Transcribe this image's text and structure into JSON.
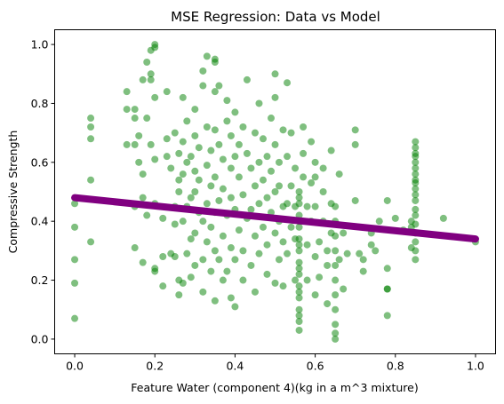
{
  "chart_data": {
    "type": "scatter",
    "title": "MSE Regression: Data vs Model",
    "xlabel": "Feature Water  (component 4)(kg in a m^3 mixture)",
    "ylabel": "Compressive Strength",
    "xlim": [
      -0.05,
      1.05
    ],
    "ylim": [
      -0.05,
      1.05
    ],
    "xticks": [
      "0.0",
      "0.2",
      "0.4",
      "0.6",
      "0.8",
      "1.0"
    ],
    "yticks": [
      "0.0",
      "0.2",
      "0.4",
      "0.6",
      "0.8",
      "1.0"
    ],
    "grid": false,
    "colors": {
      "points": "#008000",
      "line": "#800080"
    },
    "points": [
      [
        0.0,
        0.07
      ],
      [
        0.0,
        0.19
      ],
      [
        0.0,
        0.27
      ],
      [
        0.0,
        0.38
      ],
      [
        0.0,
        0.46
      ],
      [
        0.04,
        0.33
      ],
      [
        0.04,
        0.54
      ],
      [
        0.04,
        0.68
      ],
      [
        0.04,
        0.72
      ],
      [
        0.04,
        0.75
      ],
      [
        0.13,
        0.66
      ],
      [
        0.13,
        0.78
      ],
      [
        0.13,
        0.84
      ],
      [
        0.15,
        0.31
      ],
      [
        0.15,
        0.45
      ],
      [
        0.15,
        0.66
      ],
      [
        0.15,
        0.75
      ],
      [
        0.15,
        0.78
      ],
      [
        0.16,
        0.69
      ],
      [
        0.16,
        0.6
      ],
      [
        0.17,
        0.48
      ],
      [
        0.17,
        0.56
      ],
      [
        0.17,
        0.26
      ],
      [
        0.17,
        0.88
      ],
      [
        0.18,
        0.42
      ],
      [
        0.18,
        0.75
      ],
      [
        0.18,
        0.94
      ],
      [
        0.19,
        0.98
      ],
      [
        0.19,
        0.9
      ],
      [
        0.19,
        0.66
      ],
      [
        0.19,
        0.88
      ],
      [
        0.2,
        0.82
      ],
      [
        0.2,
        0.23
      ],
      [
        0.2,
        0.24
      ],
      [
        0.2,
        0.46
      ],
      [
        0.2,
        0.61
      ],
      [
        0.2,
        0.99
      ],
      [
        0.2,
        1.0
      ],
      [
        0.22,
        0.28
      ],
      [
        0.22,
        0.18
      ],
      [
        0.22,
        0.41
      ],
      [
        0.23,
        0.62
      ],
      [
        0.23,
        0.68
      ],
      [
        0.23,
        0.84
      ],
      [
        0.24,
        0.29
      ],
      [
        0.24,
        0.58
      ],
      [
        0.25,
        0.7
      ],
      [
        0.25,
        0.45
      ],
      [
        0.25,
        0.39
      ],
      [
        0.25,
        0.28
      ],
      [
        0.26,
        0.2
      ],
      [
        0.26,
        0.15
      ],
      [
        0.26,
        0.5
      ],
      [
        0.26,
        0.63
      ],
      [
        0.26,
        0.54
      ],
      [
        0.27,
        0.67
      ],
      [
        0.27,
        0.82
      ],
      [
        0.27,
        0.56
      ],
      [
        0.27,
        0.4
      ],
      [
        0.27,
        0.19
      ],
      [
        0.28,
        0.29
      ],
      [
        0.28,
        0.45
      ],
      [
        0.28,
        0.6
      ],
      [
        0.28,
        0.74
      ],
      [
        0.29,
        0.62
      ],
      [
        0.29,
        0.48
      ],
      [
        0.29,
        0.34
      ],
      [
        0.29,
        0.21
      ],
      [
        0.3,
        0.36
      ],
      [
        0.3,
        0.5
      ],
      [
        0.3,
        0.57
      ],
      [
        0.3,
        0.69
      ],
      [
        0.3,
        0.78
      ],
      [
        0.3,
        0.25
      ],
      [
        0.31,
        0.43
      ],
      [
        0.31,
        0.54
      ],
      [
        0.31,
        0.65
      ],
      [
        0.32,
        0.4
      ],
      [
        0.32,
        0.27
      ],
      [
        0.32,
        0.16
      ],
      [
        0.32,
        0.86
      ],
      [
        0.32,
        0.91
      ],
      [
        0.33,
        0.96
      ],
      [
        0.33,
        0.72
      ],
      [
        0.33,
        0.59
      ],
      [
        0.33,
        0.46
      ],
      [
        0.33,
        0.33
      ],
      [
        0.34,
        0.23
      ],
      [
        0.34,
        0.38
      ],
      [
        0.34,
        0.52
      ],
      [
        0.34,
        0.64
      ],
      [
        0.35,
        0.84
      ],
      [
        0.35,
        0.71
      ],
      [
        0.35,
        0.55
      ],
      [
        0.35,
        0.43
      ],
      [
        0.35,
        0.3
      ],
      [
        0.35,
        0.13
      ],
      [
        0.35,
        0.94
      ],
      [
        0.35,
        0.95
      ],
      [
        0.36,
        0.86
      ],
      [
        0.36,
        0.66
      ],
      [
        0.36,
        0.47
      ],
      [
        0.36,
        0.27
      ],
      [
        0.37,
        0.2
      ],
      [
        0.37,
        0.35
      ],
      [
        0.37,
        0.51
      ],
      [
        0.37,
        0.61
      ],
      [
        0.38,
        0.74
      ],
      [
        0.38,
        0.81
      ],
      [
        0.38,
        0.42
      ],
      [
        0.38,
        0.23
      ],
      [
        0.39,
        0.14
      ],
      [
        0.39,
        0.31
      ],
      [
        0.39,
        0.48
      ],
      [
        0.39,
        0.58
      ],
      [
        0.39,
        0.69
      ],
      [
        0.4,
        0.77
      ],
      [
        0.4,
        0.62
      ],
      [
        0.4,
        0.44
      ],
      [
        0.4,
        0.27
      ],
      [
        0.4,
        0.11
      ],
      [
        0.41,
        0.37
      ],
      [
        0.41,
        0.55
      ],
      [
        0.41,
        0.66
      ],
      [
        0.42,
        0.72
      ],
      [
        0.42,
        0.49
      ],
      [
        0.42,
        0.3
      ],
      [
        0.42,
        0.2
      ],
      [
        0.43,
        0.41
      ],
      [
        0.43,
        0.63
      ],
      [
        0.43,
        0.88
      ],
      [
        0.44,
        0.58
      ],
      [
        0.44,
        0.44
      ],
      [
        0.44,
        0.25
      ],
      [
        0.45,
        0.16
      ],
      [
        0.45,
        0.35
      ],
      [
        0.45,
        0.52
      ],
      [
        0.45,
        0.7
      ],
      [
        0.46,
        0.8
      ],
      [
        0.46,
        0.6
      ],
      [
        0.46,
        0.46
      ],
      [
        0.46,
        0.29
      ],
      [
        0.47,
        0.38
      ],
      [
        0.47,
        0.54
      ],
      [
        0.47,
        0.68
      ],
      [
        0.48,
        0.32
      ],
      [
        0.48,
        0.48
      ],
      [
        0.48,
        0.62
      ],
      [
        0.48,
        0.22
      ],
      [
        0.49,
        0.43
      ],
      [
        0.49,
        0.57
      ],
      [
        0.49,
        0.75
      ],
      [
        0.5,
        0.9
      ],
      [
        0.5,
        0.82
      ],
      [
        0.5,
        0.66
      ],
      [
        0.5,
        0.5
      ],
      [
        0.5,
        0.36
      ],
      [
        0.5,
        0.19
      ],
      [
        0.51,
        0.27
      ],
      [
        0.51,
        0.4
      ],
      [
        0.51,
        0.52
      ],
      [
        0.51,
        0.6
      ],
      [
        0.52,
        0.71
      ],
      [
        0.52,
        0.45
      ],
      [
        0.52,
        0.33
      ],
      [
        0.52,
        0.18
      ],
      [
        0.53,
        0.87
      ],
      [
        0.53,
        0.62
      ],
      [
        0.53,
        0.46
      ],
      [
        0.53,
        0.29
      ],
      [
        0.54,
        0.38
      ],
      [
        0.54,
        0.52
      ],
      [
        0.54,
        0.7
      ],
      [
        0.55,
        0.2
      ],
      [
        0.55,
        0.34
      ],
      [
        0.55,
        0.45
      ],
      [
        0.55,
        0.58
      ],
      [
        0.56,
        0.03
      ],
      [
        0.56,
        0.06
      ],
      [
        0.56,
        0.1
      ],
      [
        0.56,
        0.14
      ],
      [
        0.56,
        0.18
      ],
      [
        0.56,
        0.22
      ],
      [
        0.56,
        0.26
      ],
      [
        0.56,
        0.3
      ],
      [
        0.56,
        0.34
      ],
      [
        0.56,
        0.38
      ],
      [
        0.56,
        0.42
      ],
      [
        0.56,
        0.46
      ],
      [
        0.56,
        0.5
      ],
      [
        0.56,
        0.08
      ],
      [
        0.56,
        0.16
      ],
      [
        0.56,
        0.24
      ],
      [
        0.56,
        0.32
      ],
      [
        0.56,
        0.4
      ],
      [
        0.56,
        0.48
      ],
      [
        0.57,
        0.55
      ],
      [
        0.57,
        0.63
      ],
      [
        0.57,
        0.72
      ],
      [
        0.58,
        0.45
      ],
      [
        0.58,
        0.32
      ],
      [
        0.58,
        0.2
      ],
      [
        0.59,
        0.67
      ],
      [
        0.59,
        0.53
      ],
      [
        0.59,
        0.4
      ],
      [
        0.6,
        0.28
      ],
      [
        0.6,
        0.15
      ],
      [
        0.6,
        0.45
      ],
      [
        0.6,
        0.6
      ],
      [
        0.6,
        0.55
      ],
      [
        0.61,
        0.33
      ],
      [
        0.61,
        0.21
      ],
      [
        0.62,
        0.4
      ],
      [
        0.62,
        0.5
      ],
      [
        0.62,
        0.58
      ],
      [
        0.63,
        0.25
      ],
      [
        0.63,
        0.12
      ],
      [
        0.63,
        0.3
      ],
      [
        0.64,
        0.64
      ],
      [
        0.64,
        0.46
      ],
      [
        0.64,
        0.36
      ],
      [
        0.65,
        0.0
      ],
      [
        0.65,
        0.02
      ],
      [
        0.65,
        0.05
      ],
      [
        0.65,
        0.1
      ],
      [
        0.65,
        0.15
      ],
      [
        0.65,
        0.2
      ],
      [
        0.65,
        0.25
      ],
      [
        0.65,
        0.3
      ],
      [
        0.65,
        0.35
      ],
      [
        0.65,
        0.4
      ],
      [
        0.65,
        0.45
      ],
      [
        0.66,
        0.56
      ],
      [
        0.66,
        0.27
      ],
      [
        0.67,
        0.17
      ],
      [
        0.67,
        0.36
      ],
      [
        0.68,
        0.29
      ],
      [
        0.7,
        0.66
      ],
      [
        0.7,
        0.71
      ],
      [
        0.7,
        0.47
      ],
      [
        0.71,
        0.29
      ],
      [
        0.72,
        0.27
      ],
      [
        0.72,
        0.23
      ],
      [
        0.74,
        0.32
      ],
      [
        0.74,
        0.36
      ],
      [
        0.75,
        0.3
      ],
      [
        0.76,
        0.4
      ],
      [
        0.78,
        0.17
      ],
      [
        0.78,
        0.17
      ],
      [
        0.78,
        0.08
      ],
      [
        0.78,
        0.24
      ],
      [
        0.78,
        0.47
      ],
      [
        0.8,
        0.41
      ],
      [
        0.82,
        0.37
      ],
      [
        0.84,
        0.31
      ],
      [
        0.84,
        0.38
      ],
      [
        0.84,
        0.4
      ],
      [
        0.85,
        0.27
      ],
      [
        0.85,
        0.3
      ],
      [
        0.85,
        0.33
      ],
      [
        0.85,
        0.36
      ],
      [
        0.85,
        0.39
      ],
      [
        0.85,
        0.42
      ],
      [
        0.85,
        0.44
      ],
      [
        0.85,
        0.47
      ],
      [
        0.85,
        0.49
      ],
      [
        0.85,
        0.51
      ],
      [
        0.85,
        0.53
      ],
      [
        0.85,
        0.56
      ],
      [
        0.85,
        0.58
      ],
      [
        0.85,
        0.6
      ],
      [
        0.85,
        0.63
      ],
      [
        0.85,
        0.65
      ],
      [
        0.85,
        0.67
      ],
      [
        0.85,
        0.62
      ],
      [
        0.85,
        0.54
      ],
      [
        0.92,
        0.41
      ],
      [
        1.0,
        0.33
      ]
    ],
    "regression_line": {
      "x": [
        0.0,
        1.0
      ],
      "y": [
        0.48,
        0.34
      ]
    }
  }
}
